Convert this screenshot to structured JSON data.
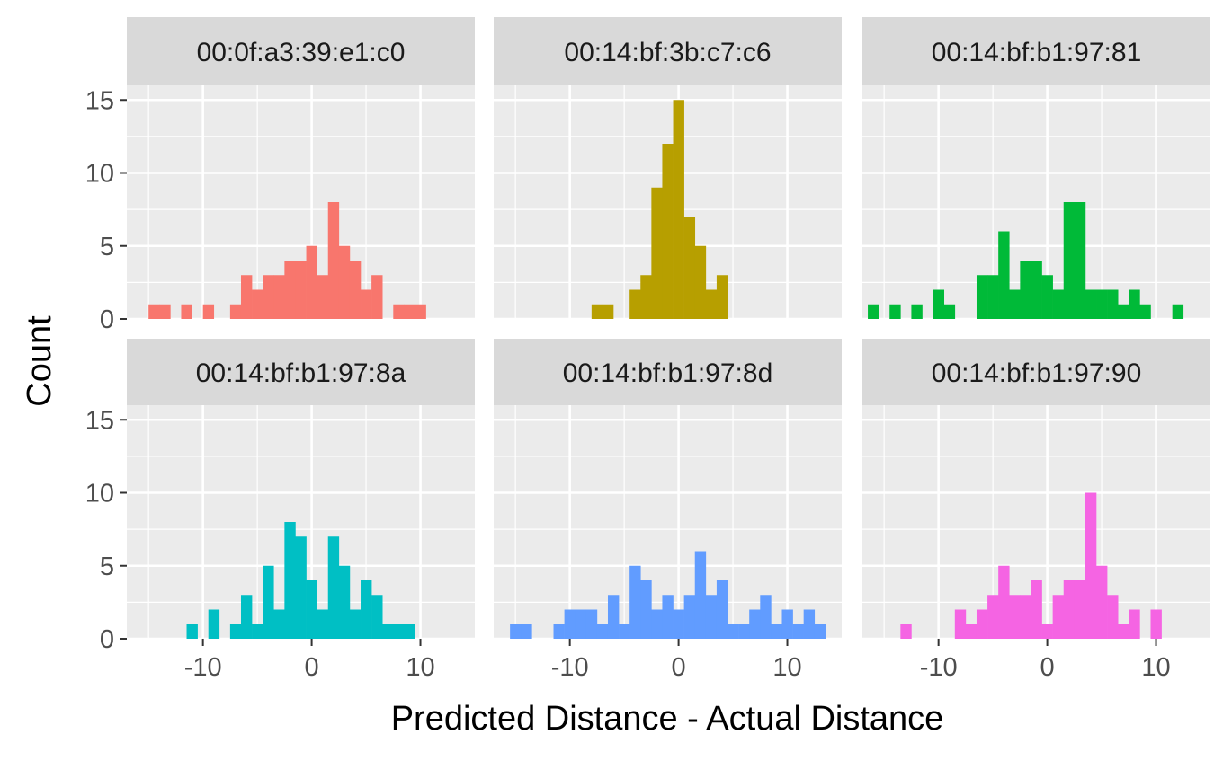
{
  "chart_data": {
    "type": "histogram-facet",
    "xlabel": "Predicted Distance - Actual Distance",
    "ylabel": "Count",
    "xlim": [
      -17,
      15
    ],
    "ylim": [
      0,
      16
    ],
    "x_ticks": [
      -10,
      0,
      10
    ],
    "x_tick_labels": [
      "-10",
      "0",
      "10"
    ],
    "y_ticks": [
      0,
      5,
      10,
      15
    ],
    "y_tick_labels": [
      "0",
      "5",
      "10",
      "15"
    ],
    "bin_width": 1,
    "grid": true,
    "legend": "none",
    "panel_bg": "#ebebeb",
    "strip_bg": "#d9d9d9",
    "panels": [
      {
        "label": "00:0f:a3:39:e1:c0",
        "color": "#F8766D",
        "bins": [
          {
            "x": -14.5,
            "count": 1
          },
          {
            "x": -13.5,
            "count": 1
          },
          {
            "x": -11.5,
            "count": 1
          },
          {
            "x": -9.5,
            "count": 1
          },
          {
            "x": -7,
            "count": 1
          },
          {
            "x": -6,
            "count": 3
          },
          {
            "x": -5,
            "count": 2
          },
          {
            "x": -4,
            "count": 3
          },
          {
            "x": -3,
            "count": 3
          },
          {
            "x": -2,
            "count": 4
          },
          {
            "x": -1,
            "count": 4
          },
          {
            "x": 0,
            "count": 5
          },
          {
            "x": 1,
            "count": 3
          },
          {
            "x": 2,
            "count": 8
          },
          {
            "x": 3,
            "count": 5
          },
          {
            "x": 4,
            "count": 4
          },
          {
            "x": 5,
            "count": 2
          },
          {
            "x": 6,
            "count": 3
          },
          {
            "x": 8,
            "count": 1
          },
          {
            "x": 9,
            "count": 1
          },
          {
            "x": 10,
            "count": 1
          }
        ]
      },
      {
        "label": "00:14:bf:3b:c7:c6",
        "color": "#B79F00",
        "bins": [
          {
            "x": -7.5,
            "count": 1
          },
          {
            "x": -6.5,
            "count": 1
          },
          {
            "x": -4,
            "count": 2
          },
          {
            "x": -3,
            "count": 3
          },
          {
            "x": -2,
            "count": 9
          },
          {
            "x": -1,
            "count": 12
          },
          {
            "x": 0,
            "count": 15
          },
          {
            "x": 1,
            "count": 7
          },
          {
            "x": 2,
            "count": 5
          },
          {
            "x": 3,
            "count": 2
          },
          {
            "x": 4,
            "count": 3
          }
        ]
      },
      {
        "label": "00:14:bf:b1:97:81",
        "color": "#00BA38",
        "bins": [
          {
            "x": -16,
            "count": 1
          },
          {
            "x": -14,
            "count": 1
          },
          {
            "x": -12,
            "count": 1
          },
          {
            "x": -10,
            "count": 2
          },
          {
            "x": -9,
            "count": 1
          },
          {
            "x": -6,
            "count": 3
          },
          {
            "x": -5,
            "count": 3
          },
          {
            "x": -4,
            "count": 6
          },
          {
            "x": -3,
            "count": 2
          },
          {
            "x": -2,
            "count": 4
          },
          {
            "x": -1,
            "count": 4
          },
          {
            "x": 0,
            "count": 3
          },
          {
            "x": 1,
            "count": 2
          },
          {
            "x": 2,
            "count": 8
          },
          {
            "x": 3,
            "count": 8
          },
          {
            "x": 4,
            "count": 2
          },
          {
            "x": 5,
            "count": 2
          },
          {
            "x": 6,
            "count": 2
          },
          {
            "x": 7,
            "count": 1
          },
          {
            "x": 8,
            "count": 2
          },
          {
            "x": 9,
            "count": 1
          },
          {
            "x": 12,
            "count": 1
          }
        ]
      },
      {
        "label": "00:14:bf:b1:97:8a",
        "color": "#00BFC4",
        "bins": [
          {
            "x": -11,
            "count": 1
          },
          {
            "x": -9,
            "count": 2
          },
          {
            "x": -7,
            "count": 1
          },
          {
            "x": -6,
            "count": 3
          },
          {
            "x": -5,
            "count": 1
          },
          {
            "x": -4,
            "count": 5
          },
          {
            "x": -3,
            "count": 2
          },
          {
            "x": -2,
            "count": 8
          },
          {
            "x": -1,
            "count": 7
          },
          {
            "x": 0,
            "count": 4
          },
          {
            "x": 1,
            "count": 2
          },
          {
            "x": 2,
            "count": 7
          },
          {
            "x": 3,
            "count": 5
          },
          {
            "x": 4,
            "count": 2
          },
          {
            "x": 5,
            "count": 4
          },
          {
            "x": 6,
            "count": 3
          },
          {
            "x": 7,
            "count": 1
          },
          {
            "x": 8,
            "count": 1
          },
          {
            "x": 9,
            "count": 1
          }
        ]
      },
      {
        "label": "00:14:bf:b1:97:8d",
        "color": "#619CFF",
        "bins": [
          {
            "x": -15,
            "count": 1
          },
          {
            "x": -14,
            "count": 1
          },
          {
            "x": -11,
            "count": 1
          },
          {
            "x": -10,
            "count": 2
          },
          {
            "x": -9,
            "count": 2
          },
          {
            "x": -8,
            "count": 2
          },
          {
            "x": -7,
            "count": 1
          },
          {
            "x": -6,
            "count": 3
          },
          {
            "x": -5,
            "count": 1
          },
          {
            "x": -4,
            "count": 5
          },
          {
            "x": -3,
            "count": 4
          },
          {
            "x": -2,
            "count": 2
          },
          {
            "x": -1,
            "count": 3
          },
          {
            "x": 0,
            "count": 2
          },
          {
            "x": 1,
            "count": 3
          },
          {
            "x": 2,
            "count": 6
          },
          {
            "x": 3,
            "count": 3
          },
          {
            "x": 4,
            "count": 4
          },
          {
            "x": 5,
            "count": 1
          },
          {
            "x": 6,
            "count": 1
          },
          {
            "x": 7,
            "count": 2
          },
          {
            "x": 8,
            "count": 3
          },
          {
            "x": 9,
            "count": 1
          },
          {
            "x": 10,
            "count": 2
          },
          {
            "x": 11,
            "count": 1
          },
          {
            "x": 12,
            "count": 2
          },
          {
            "x": 13,
            "count": 1
          }
        ]
      },
      {
        "label": "00:14:bf:b1:97:90",
        "color": "#F564E3",
        "bins": [
          {
            "x": -13,
            "count": 1
          },
          {
            "x": -8,
            "count": 2
          },
          {
            "x": -7,
            "count": 1
          },
          {
            "x": -6,
            "count": 2
          },
          {
            "x": -5,
            "count": 3
          },
          {
            "x": -4,
            "count": 5
          },
          {
            "x": -3,
            "count": 3
          },
          {
            "x": -2,
            "count": 3
          },
          {
            "x": -1,
            "count": 4
          },
          {
            "x": 0,
            "count": 1
          },
          {
            "x": 1,
            "count": 3
          },
          {
            "x": 2,
            "count": 4
          },
          {
            "x": 3,
            "count": 4
          },
          {
            "x": 4,
            "count": 10
          },
          {
            "x": 5,
            "count": 5
          },
          {
            "x": 6,
            "count": 3
          },
          {
            "x": 7,
            "count": 1
          },
          {
            "x": 8,
            "count": 2
          },
          {
            "x": 10,
            "count": 2
          }
        ]
      }
    ]
  }
}
